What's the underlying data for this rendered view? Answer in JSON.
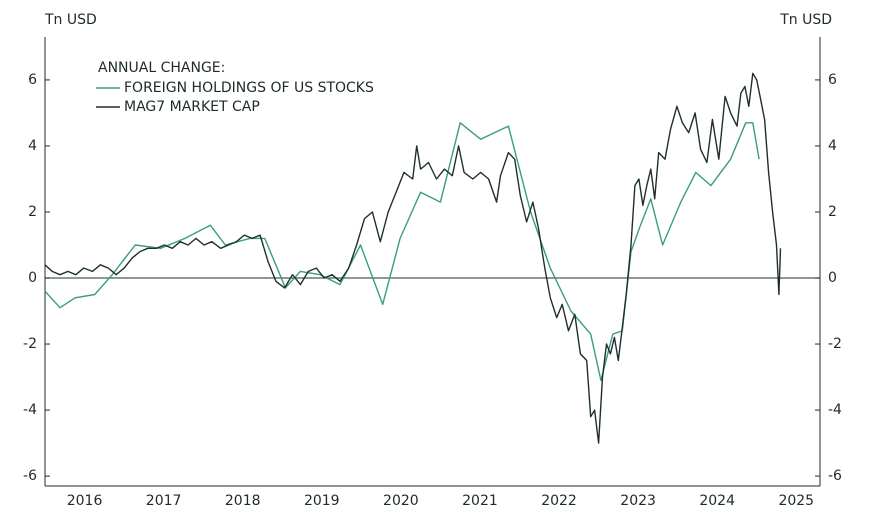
{
  "chart_data": {
    "type": "line",
    "y_label": "Tn USD",
    "y2_label": "Tn USD",
    "legend_title": "ANNUAL CHANGE:",
    "xlim": [
      2016,
      2025.8
    ],
    "xticks": [
      {
        "value": 2016.5,
        "label": "2016"
      },
      {
        "value": 2017.5,
        "label": "2017"
      },
      {
        "value": 2018.5,
        "label": "2018"
      },
      {
        "value": 2019.5,
        "label": "2019"
      },
      {
        "value": 2020.5,
        "label": "2020"
      },
      {
        "value": 2021.5,
        "label": "2021"
      },
      {
        "value": 2022.5,
        "label": "2022"
      },
      {
        "value": 2023.5,
        "label": "2023"
      },
      {
        "value": 2024.5,
        "label": "2024"
      },
      {
        "value": 2025.5,
        "label": "2025"
      }
    ],
    "ylim": [
      -6.3,
      7.3
    ],
    "yticks": [
      -6,
      -4,
      -2,
      0,
      2,
      4,
      6
    ],
    "y2lim": [
      -6.3,
      7.3
    ],
    "y2ticks": [
      -6,
      -4,
      -2,
      0,
      2,
      4,
      6
    ],
    "series": [
      {
        "name": "FOREIGN HOLDINGS OF US STOCKS",
        "color": "#3a9c80",
        "x": [
          2016.0,
          2016.19,
          2016.38,
          2016.63,
          2016.85,
          2017.14,
          2017.46,
          2017.77,
          2018.09,
          2018.28,
          2018.59,
          2018.78,
          2019.04,
          2019.23,
          2019.48,
          2019.73,
          2019.99,
          2020.27,
          2020.49,
          2020.75,
          2021.0,
          2021.25,
          2021.51,
          2021.86,
          2022.14,
          2022.39,
          2022.65,
          2022.9,
          2023.03,
          2023.18,
          2023.3,
          2023.41,
          2023.53,
          2023.66,
          2023.81,
          2024.04,
          2024.23,
          2024.42,
          2024.67,
          2024.86,
          2024.95,
          2025.03
        ],
        "values": [
          -0.4,
          -0.9,
          -0.6,
          -0.5,
          0.1,
          1.0,
          0.9,
          1.2,
          1.6,
          1.0,
          1.2,
          1.2,
          -0.3,
          0.2,
          0.1,
          -0.2,
          1.0,
          -0.8,
          1.2,
          2.6,
          2.3,
          4.7,
          4.2,
          4.6,
          2.0,
          0.3,
          -1.0,
          -1.7,
          -3.1,
          -1.7,
          -1.6,
          0.8,
          1.6,
          2.4,
          1.0,
          2.3,
          3.2,
          2.8,
          3.6,
          4.7,
          4.7,
          3.6
        ]
      },
      {
        "name": "MAG7 MARKET CAP",
        "color": "#1f2f2f",
        "x": [
          2016.0,
          2016.09,
          2016.19,
          2016.29,
          2016.39,
          2016.49,
          2016.6,
          2016.7,
          2016.8,
          2016.9,
          2017.0,
          2017.1,
          2017.2,
          2017.3,
          2017.41,
          2017.51,
          2017.61,
          2017.71,
          2017.81,
          2017.91,
          2018.01,
          2018.11,
          2018.22,
          2018.32,
          2018.42,
          2018.52,
          2018.62,
          2018.72,
          2018.82,
          2018.92,
          2019.03,
          2019.13,
          2019.23,
          2019.33,
          2019.43,
          2019.53,
          2019.63,
          2019.73,
          2019.84,
          2019.94,
          2020.04,
          2020.14,
          2020.24,
          2020.34,
          2020.44,
          2020.54,
          2020.65,
          2020.7,
          2020.75,
          2020.85,
          2020.95,
          2021.05,
          2021.15,
          2021.23,
          2021.3,
          2021.41,
          2021.51,
          2021.61,
          2021.71,
          2021.76,
          2021.86,
          2021.94,
          2022.01,
          2022.09,
          2022.17,
          2022.24,
          2022.32,
          2022.39,
          2022.47,
          2022.54,
          2022.62,
          2022.7,
          2022.77,
          2022.85,
          2022.9,
          2022.95,
          2023.0,
          2023.05,
          2023.1,
          2023.15,
          2023.2,
          2023.25,
          2023.3,
          2023.35,
          2023.41,
          2023.46,
          2023.51,
          2023.56,
          2023.61,
          2023.66,
          2023.71,
          2023.76,
          2023.84,
          2023.91,
          2023.99,
          2024.06,
          2024.14,
          2024.22,
          2024.29,
          2024.37,
          2024.44,
          2024.52,
          2024.6,
          2024.67,
          2024.75,
          2024.8,
          2024.85,
          2024.9,
          2024.95,
          2025.0,
          2025.05,
          2025.1,
          2025.15,
          2025.2,
          2025.25,
          2025.28,
          2025.3
        ],
        "values": [
          0.4,
          0.2,
          0.1,
          0.2,
          0.1,
          0.3,
          0.2,
          0.4,
          0.3,
          0.1,
          0.3,
          0.6,
          0.8,
          0.9,
          0.9,
          1.0,
          0.9,
          1.1,
          1.0,
          1.2,
          1.0,
          1.1,
          0.9,
          1.0,
          1.1,
          1.3,
          1.2,
          1.3,
          0.5,
          -0.1,
          -0.3,
          0.1,
          -0.2,
          0.2,
          0.3,
          0.0,
          0.1,
          -0.1,
          0.3,
          1.0,
          1.8,
          2.0,
          1.1,
          2.0,
          2.6,
          3.2,
          3.0,
          4.0,
          3.3,
          3.5,
          3.0,
          3.3,
          3.1,
          4.0,
          3.2,
          3.0,
          3.2,
          3.0,
          2.3,
          3.1,
          3.8,
          3.6,
          2.5,
          1.7,
          2.3,
          1.5,
          0.3,
          -0.6,
          -1.2,
          -0.8,
          -1.6,
          -1.1,
          -2.3,
          -2.5,
          -4.2,
          -4.0,
          -5.0,
          -3.0,
          -2.0,
          -2.3,
          -1.8,
          -2.5,
          -1.5,
          -0.5,
          1.0,
          2.8,
          3.0,
          2.2,
          2.8,
          3.3,
          2.4,
          3.8,
          3.6,
          4.5,
          5.2,
          4.7,
          4.4,
          5.0,
          3.9,
          3.5,
          4.8,
          3.6,
          5.5,
          5.0,
          4.6,
          5.6,
          5.8,
          5.2,
          6.2,
          6.0,
          5.4,
          4.8,
          3.2,
          2.0,
          1.0,
          -0.5,
          0.9
        ]
      }
    ]
  }
}
